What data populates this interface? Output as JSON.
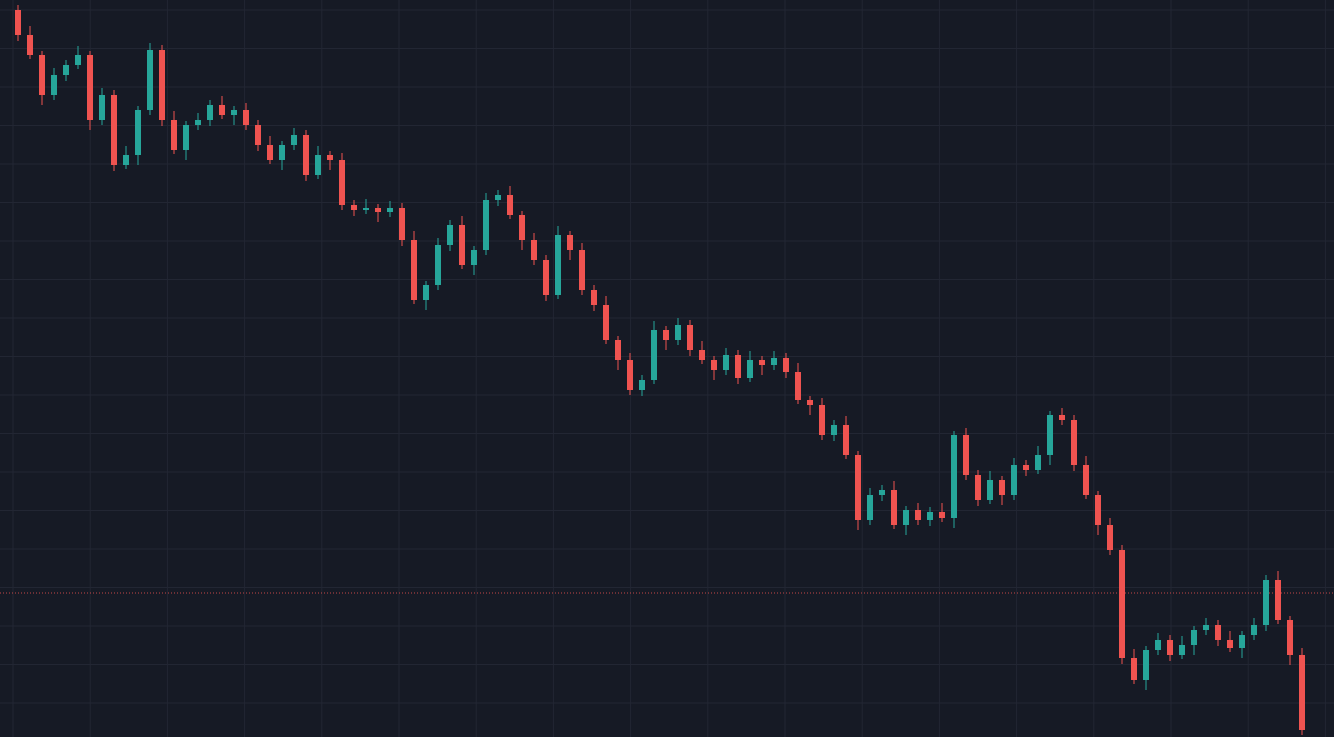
{
  "chart_data": {
    "type": "candlestick",
    "up_color": "#26a69a",
    "down_color": "#ef5350",
    "ylim": [
      0,
      737
    ],
    "grid": true,
    "price_line": {
      "value": 144,
      "color": "#ef5350"
    },
    "open": [
      727,
      702,
      682,
      642,
      662,
      672,
      682,
      617,
      642,
      572,
      582,
      627,
      687,
      617,
      587,
      612,
      617,
      632,
      622,
      627,
      612,
      592,
      577,
      592,
      602,
      562,
      582,
      577,
      532,
      527,
      529,
      525,
      529,
      497,
      437,
      452,
      492,
      512,
      472,
      487,
      537,
      542,
      522,
      497,
      477,
      442,
      502,
      487,
      447,
      432,
      397,
      377,
      347,
      357,
      407,
      397,
      412,
      387,
      377,
      367,
      382,
      359,
      377,
      372,
      379,
      365,
      337,
      332,
      302,
      312,
      282,
      217,
      242,
      247,
      212,
      227,
      217,
      225,
      219,
      302,
      262,
      237,
      257,
      242,
      272,
      267,
      282,
      322,
      317,
      272,
      242,
      212,
      187,
      79,
      57,
      87,
      97,
      82,
      92,
      107,
      112,
      97,
      89,
      102,
      112,
      157,
      117,
      82
    ],
    "high": [
      732,
      711,
      686,
      669,
      677,
      691,
      686,
      649,
      647,
      591,
      631,
      694,
      692,
      626,
      616,
      624,
      637,
      641,
      631,
      634,
      617,
      601,
      596,
      609,
      607,
      591,
      586,
      584,
      537,
      538,
      533,
      536,
      534,
      506,
      456,
      499,
      517,
      521,
      491,
      544,
      547,
      551,
      526,
      504,
      482,
      511,
      506,
      494,
      452,
      441,
      401,
      384,
      362,
      416,
      411,
      419,
      417,
      396,
      381,
      389,
      387,
      386,
      381,
      386,
      384,
      374,
      341,
      339,
      317,
      321,
      286,
      249,
      252,
      256,
      231,
      234,
      230,
      234,
      306,
      309,
      267,
      266,
      261,
      279,
      277,
      291,
      326,
      329,
      322,
      281,
      246,
      219,
      192,
      88,
      91,
      104,
      102,
      101,
      111,
      119,
      117,
      106,
      106,
      119,
      162,
      166,
      121,
      89
    ],
    "low": [
      696,
      678,
      632,
      637,
      656,
      668,
      607,
      612,
      566,
      568,
      572,
      622,
      611,
      583,
      577,
      607,
      611,
      618,
      612,
      607,
      586,
      573,
      567,
      587,
      556,
      558,
      567,
      527,
      521,
      523,
      515,
      520,
      491,
      433,
      427,
      447,
      486,
      468,
      462,
      482,
      531,
      518,
      487,
      472,
      436,
      438,
      477,
      442,
      426,
      393,
      367,
      342,
      341,
      353,
      387,
      392,
      381,
      373,
      357,
      362,
      353,
      355,
      362,
      367,
      359,
      333,
      322,
      297,
      296,
      278,
      207,
      212,
      236,
      208,
      202,
      212,
      211,
      215,
      209,
      257,
      231,
      233,
      232,
      237,
      261,
      263,
      272,
      312,
      266,
      238,
      202,
      182,
      73,
      53,
      47,
      82,
      76,
      78,
      82,
      102,
      91,
      85,
      79,
      97,
      106,
      113,
      72,
      2
    ],
    "close": [
      702,
      682,
      642,
      662,
      672,
      682,
      617,
      642,
      572,
      582,
      627,
      687,
      617,
      587,
      612,
      617,
      632,
      622,
      627,
      612,
      592,
      577,
      592,
      602,
      562,
      582,
      577,
      532,
      527,
      529,
      525,
      529,
      497,
      437,
      452,
      492,
      512,
      472,
      487,
      537,
      542,
      522,
      497,
      477,
      442,
      502,
      487,
      447,
      432,
      397,
      377,
      347,
      357,
      407,
      397,
      412,
      387,
      377,
      367,
      382,
      359,
      377,
      372,
      379,
      365,
      337,
      332,
      302,
      312,
      282,
      217,
      242,
      247,
      212,
      227,
      217,
      225,
      219,
      302,
      262,
      237,
      257,
      242,
      272,
      267,
      282,
      322,
      317,
      272,
      242,
      212,
      187,
      79,
      57,
      87,
      97,
      82,
      92,
      107,
      112,
      97,
      89,
      102,
      112,
      157,
      117,
      82,
      7
    ]
  }
}
